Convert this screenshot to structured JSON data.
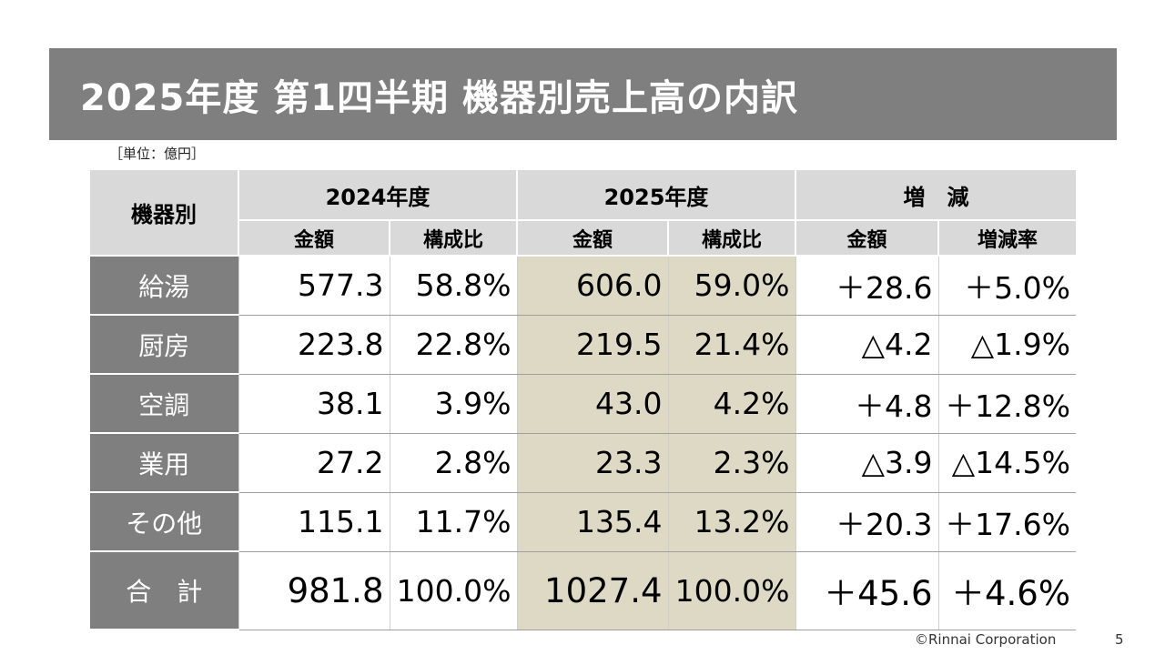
{
  "slide": {
    "title": "2025年度 第1四半期 機器別売上高の内訳",
    "unit": "［単位：億円］",
    "footer": "©Rinnai Corporation",
    "page_number": "5"
  },
  "table": {
    "corner_header": "機器別",
    "group_headers": [
      "2024年度",
      "2025年度",
      "増　減"
    ],
    "sub_headers": [
      "金額",
      "構成比",
      "金額",
      "構成比",
      "金額",
      "増減率"
    ],
    "rows": [
      {
        "category": "給湯",
        "cells": [
          "577.3",
          "58.8%",
          "606.0",
          "59.0%",
          "＋28.6",
          "＋5.0%"
        ]
      },
      {
        "category": "厨房",
        "cells": [
          "223.8",
          "22.8%",
          "219.5",
          "21.4%",
          "△4.2",
          "△1.9%"
        ]
      },
      {
        "category": "空調",
        "cells": [
          "38.1",
          "3.9%",
          "43.0",
          "4.2%",
          "＋4.8",
          "＋12.8%"
        ]
      },
      {
        "category": "業用",
        "cells": [
          "27.2",
          "2.8%",
          "23.3",
          "2.3%",
          "△3.9",
          "△14.5%"
        ]
      },
      {
        "category": "その他",
        "cells": [
          "115.1",
          "11.7%",
          "135.4",
          "13.2%",
          "＋20.3",
          "＋17.6%"
        ]
      },
      {
        "category": "合　計",
        "cells": [
          "981.8",
          "100.0%",
          "1027.4",
          "100.0%",
          "＋45.6",
          "＋4.6%"
        ]
      }
    ]
  },
  "colors": {
    "header_bar": "#7f7f7f",
    "header_cell": "#d9d9d9",
    "category_cell": "#7f7f7f",
    "highlight_2025": "#ddd9c4"
  }
}
